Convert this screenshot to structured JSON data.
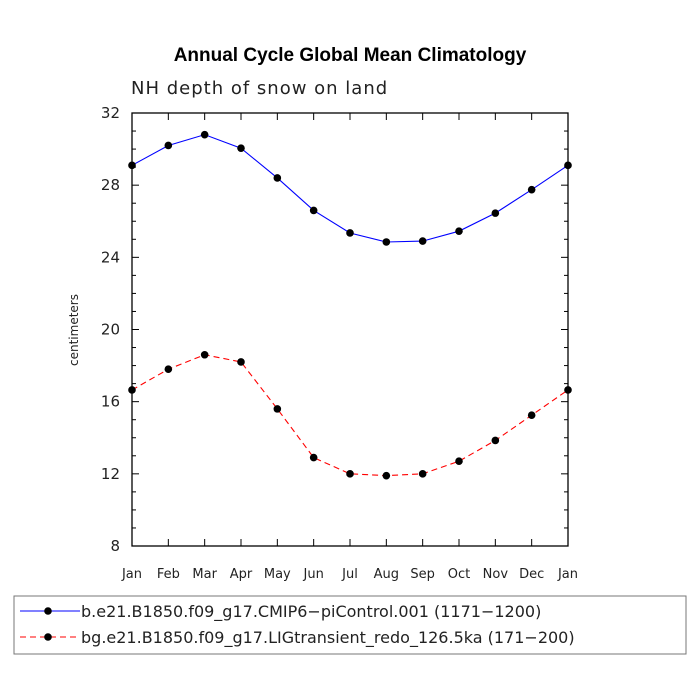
{
  "chart_data": {
    "type": "line",
    "title": "Annual Cycle Global Mean Climatology",
    "subtitle": "NH depth of snow on land",
    "xlabel": "",
    "ylabel": "centimeters",
    "ylim": [
      8,
      32
    ],
    "yticks": [
      "8",
      "12",
      "16",
      "20",
      "24",
      "28",
      "32"
    ],
    "categories": [
      "Jan",
      "Feb",
      "Mar",
      "Apr",
      "May",
      "Jun",
      "Jul",
      "Aug",
      "Sep",
      "Oct",
      "Nov",
      "Dec",
      "Jan"
    ],
    "series": [
      {
        "name": "b.e21.B1850.f09_g17.CMIP6−piControl.001 (1171−1200)",
        "color": "#0000ff",
        "dash": "solid",
        "values": [
          29.1,
          30.2,
          30.8,
          30.05,
          28.4,
          26.6,
          25.35,
          24.85,
          24.9,
          25.45,
          26.45,
          27.75,
          29.1
        ]
      },
      {
        "name": "bg.e21.B1850.f09_g17.LIGtransient_redo_126.5ka (171−200)",
        "color": "#ff0000",
        "dash": "dashed",
        "values": [
          16.65,
          17.8,
          18.6,
          18.2,
          15.6,
          12.9,
          12.0,
          11.9,
          12.0,
          12.7,
          13.85,
          15.25,
          16.65
        ]
      }
    ],
    "legend": "bottom"
  }
}
